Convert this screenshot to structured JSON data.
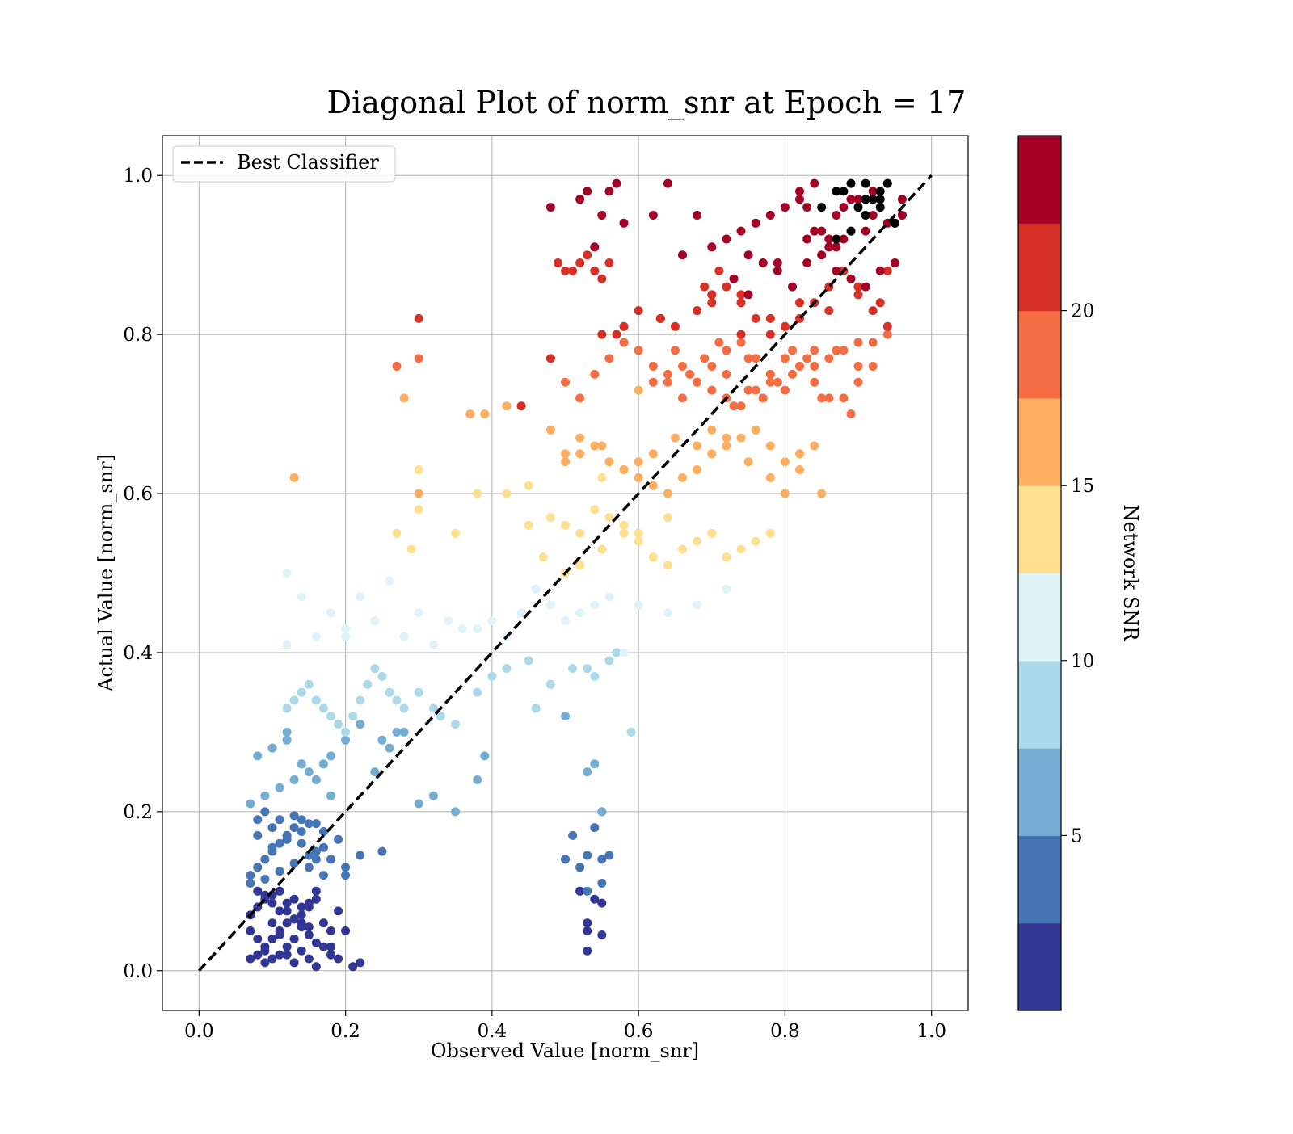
{
  "chart_data": {
    "type": "scatter",
    "title": "Diagonal Plot of norm_snr at Epoch = 17",
    "xlabel": "Observed Value [norm_snr]",
    "ylabel": "Actual Value [norm_snr]",
    "xlim": [
      -0.05,
      1.05
    ],
    "ylim": [
      -0.05,
      1.05
    ],
    "xticks": [
      0.0,
      0.2,
      0.4,
      0.6,
      0.8,
      1.0
    ],
    "yticks": [
      0.0,
      0.2,
      0.4,
      0.6,
      0.8,
      1.0
    ],
    "xtick_labels": [
      "0.0",
      "0.2",
      "0.4",
      "0.6",
      "0.8",
      "1.0"
    ],
    "ytick_labels": [
      "0.0",
      "0.2",
      "0.4",
      "0.6",
      "0.8",
      "1.0"
    ],
    "grid": true,
    "legend": {
      "position": "upper-left",
      "entries": [
        "Best Classifier"
      ]
    },
    "reference_line": {
      "name": "Best Classifier",
      "style": "dashed",
      "color": "#000000",
      "x": [
        0.0,
        1.0
      ],
      "y": [
        0.0,
        1.0
      ]
    },
    "colorbar": {
      "label": "Network SNR",
      "range": [
        0,
        25
      ],
      "ticks": [
        5,
        10,
        15,
        20
      ],
      "tick_labels": [
        "5",
        "10",
        "15",
        "20"
      ],
      "colors": [
        "#313695",
        "#4575b4",
        "#74add1",
        "#abd9e9",
        "#e0f3f8",
        "#fee090",
        "#fdae61",
        "#f46d43",
        "#d73027",
        "#a50026"
      ]
    },
    "point_colors": [
      "#313695",
      "#4575b4",
      "#74add1",
      "#abd9e9",
      "#e0f3f8",
      "#fee090",
      "#fdae61",
      "#f46d43",
      "#d73027",
      "#a50026"
    ],
    "points_x": [
      0.07,
      0.08,
      0.09,
      0.09,
      0.1,
      0.1,
      0.11,
      0.11,
      0.12,
      0.12,
      0.13,
      0.13,
      0.14,
      0.14,
      0.15,
      0.15,
      0.16,
      0.07,
      0.08,
      0.09,
      0.1,
      0.11,
      0.12,
      0.13,
      0.14,
      0.15,
      0.16,
      0.17,
      0.18,
      0.19,
      0.08,
      0.1,
      0.12,
      0.14,
      0.16,
      0.18,
      0.2,
      0.22,
      0.08,
      0.09,
      0.1,
      0.11,
      0.12,
      0.13,
      0.14,
      0.15,
      0.16,
      0.18,
      0.07,
      0.09,
      0.11,
      0.13,
      0.15,
      0.17,
      0.19,
      0.21,
      0.53,
      0.53,
      0.54,
      0.55,
      0.55,
      0.53,
      0.52,
      0.07,
      0.08,
      0.09,
      0.1,
      0.11,
      0.12,
      0.13,
      0.14,
      0.15,
      0.16,
      0.17,
      0.08,
      0.1,
      0.12,
      0.14,
      0.16,
      0.18,
      0.2,
      0.09,
      0.11,
      0.13,
      0.15,
      0.17,
      0.07,
      0.09,
      0.11,
      0.13,
      0.15,
      0.17,
      0.19,
      0.22,
      0.25,
      0.08,
      0.1,
      0.12,
      0.14,
      0.16,
      0.2,
      0.5,
      0.51,
      0.53,
      0.54,
      0.55,
      0.56,
      0.5,
      0.52,
      0.55,
      0.55,
      0.53,
      0.07,
      0.09,
      0.11,
      0.13,
      0.15,
      0.17,
      0.08,
      0.1,
      0.12,
      0.14,
      0.16,
      0.18,
      0.1,
      0.12,
      0.14,
      0.16,
      0.18,
      0.2,
      0.22,
      0.24,
      0.26,
      0.28,
      0.3,
      0.32,
      0.35,
      0.38,
      0.39,
      0.25,
      0.27,
      0.53,
      0.54,
      0.55,
      0.5,
      0.12,
      0.13,
      0.14,
      0.15,
      0.16,
      0.17,
      0.18,
      0.19,
      0.2,
      0.21,
      0.22,
      0.23,
      0.24,
      0.25,
      0.26,
      0.27,
      0.28,
      0.3,
      0.32,
      0.35,
      0.38,
      0.4,
      0.42,
      0.45,
      0.48,
      0.51,
      0.54,
      0.56,
      0.59,
      0.33,
      0.46,
      0.53,
      0.57,
      0.12,
      0.16,
      0.2,
      0.24,
      0.28,
      0.32,
      0.36,
      0.4,
      0.44,
      0.48,
      0.52,
      0.56,
      0.6,
      0.64,
      0.68,
      0.72,
      0.22,
      0.26,
      0.3,
      0.34,
      0.38,
      0.42,
      0.46,
      0.5,
      0.54,
      0.58,
      0.2,
      0.18,
      0.14,
      0.12,
      0.47,
      0.5,
      0.52,
      0.55,
      0.58,
      0.6,
      0.62,
      0.64,
      0.66,
      0.68,
      0.7,
      0.72,
      0.74,
      0.76,
      0.78,
      0.45,
      0.48,
      0.5,
      0.52,
      0.54,
      0.56,
      0.58,
      0.6,
      0.62,
      0.64,
      0.27,
      0.29,
      0.3,
      0.35,
      0.38,
      0.42,
      0.45,
      0.55,
      0.3,
      0.5,
      0.52,
      0.54,
      0.56,
      0.58,
      0.6,
      0.62,
      0.64,
      0.66,
      0.68,
      0.7,
      0.72,
      0.74,
      0.76,
      0.78,
      0.8,
      0.82,
      0.84,
      0.48,
      0.5,
      0.52,
      0.55,
      0.58,
      0.6,
      0.62,
      0.65,
      0.68,
      0.7,
      0.72,
      0.75,
      0.78,
      0.8,
      0.82,
      0.85,
      0.13,
      0.3,
      0.37,
      0.39,
      0.42,
      0.28,
      0.6,
      0.62,
      0.64,
      0.66,
      0.68,
      0.7,
      0.72,
      0.74,
      0.76,
      0.78,
      0.8,
      0.82,
      0.84,
      0.86,
      0.88,
      0.9,
      0.92,
      0.65,
      0.67,
      0.69,
      0.71,
      0.73,
      0.75,
      0.77,
      0.79,
      0.81,
      0.83,
      0.85,
      0.87,
      0.89,
      0.5,
      0.52,
      0.54,
      0.56,
      0.58,
      0.6,
      0.62,
      0.64,
      0.66,
      0.68,
      0.7,
      0.72,
      0.74,
      0.76,
      0.78,
      0.8,
      0.82,
      0.84,
      0.86,
      0.88,
      0.9,
      0.92,
      0.94,
      0.72,
      0.75,
      0.78,
      0.81,
      0.84,
      0.87,
      0.9,
      0.27,
      0.3,
      0.44,
      0.48,
      0.55,
      0.57,
      0.58,
      0.63,
      0.68,
      0.7,
      0.74,
      0.9,
      0.93,
      0.6,
      0.63,
      0.65,
      0.68,
      0.7,
      0.72,
      0.74,
      0.76,
      0.78,
      0.8,
      0.82,
      0.84,
      0.86,
      0.88,
      0.9,
      0.92,
      0.94,
      0.7,
      0.74,
      0.78,
      0.82,
      0.86,
      0.9,
      0.94,
      0.3,
      0.5,
      0.52,
      0.54,
      0.56,
      0.53,
      0.55,
      0.51,
      0.49,
      0.69,
      0.71,
      0.73,
      0.75,
      0.77,
      0.79,
      0.81,
      0.83,
      0.85,
      0.87,
      0.89,
      0.91,
      0.93,
      0.95,
      0.75,
      0.79,
      0.83,
      0.87,
      0.91,
      0.95,
      0.96,
      0.48,
      0.52,
      0.53,
      0.54,
      0.55,
      0.56,
      0.57,
      0.58,
      0.62,
      0.64,
      0.66,
      0.68,
      0.7,
      0.72,
      0.74,
      0.76,
      0.78,
      0.8,
      0.82,
      0.84,
      0.86,
      0.88,
      0.9,
      0.92,
      0.94,
      0.96,
      0.82,
      0.84,
      0.86,
      0.88,
      0.9,
      0.92,
      0.94,
      0.96,
      0.83,
      0.85,
      0.87,
      0.89,
      0.91,
      0.93,
      0.85,
      0.87,
      0.89,
      0.91,
      0.93,
      0.95,
      0.87,
      0.89,
      0.91,
      0.93,
      0.88,
      0.9,
      0.92,
      0.94
    ],
    "points_y": [
      0.015,
      0.02,
      0.03,
      0.01,
      0.04,
      0.015,
      0.05,
      0.02,
      0.03,
      0.06,
      0.01,
      0.04,
      0.025,
      0.055,
      0.015,
      0.045,
      0.005,
      0.07,
      0.08,
      0.09,
      0.095,
      0.075,
      0.085,
      0.065,
      0.07,
      0.08,
      0.09,
      0.06,
      0.05,
      0.075,
      0.04,
      0.06,
      0.02,
      0.08,
      0.1,
      0.03,
      0.05,
      0.01,
      0.1,
      0.095,
      0.085,
      0.1,
      0.075,
      0.09,
      0.06,
      0.055,
      0.035,
      0.02,
      0.05,
      0.025,
      0.045,
      0.065,
      0.085,
      0.03,
      0.015,
      0.005,
      0.06,
      0.05,
      0.09,
      0.085,
      0.045,
      0.025,
      0.1,
      0.12,
      0.13,
      0.14,
      0.15,
      0.16,
      0.17,
      0.18,
      0.19,
      0.13,
      0.14,
      0.12,
      0.19,
      0.18,
      0.17,
      0.16,
      0.15,
      0.14,
      0.13,
      0.2,
      0.19,
      0.195,
      0.185,
      0.175,
      0.11,
      0.115,
      0.125,
      0.135,
      0.145,
      0.155,
      0.165,
      0.145,
      0.15,
      0.17,
      0.155,
      0.165,
      0.175,
      0.185,
      0.12,
      0.14,
      0.17,
      0.145,
      0.18,
      0.2,
      0.145,
      0.14,
      0.13,
      0.11,
      0.14,
      0.1,
      0.21,
      0.22,
      0.23,
      0.24,
      0.25,
      0.26,
      0.27,
      0.28,
      0.29,
      0.26,
      0.24,
      0.22,
      0.28,
      0.3,
      0.26,
      0.24,
      0.27,
      0.29,
      0.31,
      0.25,
      0.28,
      0.3,
      0.21,
      0.22,
      0.2,
      0.24,
      0.27,
      0.29,
      0.3,
      0.25,
      0.26,
      0.2,
      0.32,
      0.33,
      0.34,
      0.35,
      0.36,
      0.34,
      0.33,
      0.32,
      0.31,
      0.3,
      0.32,
      0.34,
      0.36,
      0.38,
      0.37,
      0.35,
      0.34,
      0.33,
      0.35,
      0.33,
      0.31,
      0.35,
      0.37,
      0.38,
      0.39,
      0.36,
      0.38,
      0.37,
      0.39,
      0.3,
      0.32,
      0.33,
      0.38,
      0.4,
      0.41,
      0.42,
      0.43,
      0.44,
      0.42,
      0.41,
      0.43,
      0.44,
      0.45,
      0.46,
      0.45,
      0.47,
      0.46,
      0.45,
      0.46,
      0.48,
      0.47,
      0.49,
      0.45,
      0.44,
      0.43,
      0.42,
      0.48,
      0.44,
      0.46,
      0.4,
      0.42,
      0.45,
      0.47,
      0.5,
      0.52,
      0.5,
      0.51,
      0.53,
      0.55,
      0.54,
      0.52,
      0.51,
      0.53,
      0.54,
      0.55,
      0.52,
      0.53,
      0.54,
      0.55,
      0.56,
      0.57,
      0.56,
      0.55,
      0.58,
      0.57,
      0.56,
      0.55,
      0.52,
      0.57,
      0.55,
      0.53,
      0.58,
      0.55,
      0.6,
      0.6,
      0.61,
      0.62,
      0.63,
      0.64,
      0.65,
      0.66,
      0.64,
      0.63,
      0.62,
      0.61,
      0.6,
      0.62,
      0.63,
      0.65,
      0.66,
      0.67,
      0.68,
      0.62,
      0.64,
      0.63,
      0.66,
      0.68,
      0.65,
      0.67,
      0.66,
      0.63,
      0.64,
      0.65,
      0.67,
      0.66,
      0.68,
      0.67,
      0.64,
      0.66,
      0.6,
      0.65,
      0.6,
      0.62,
      0.6,
      0.7,
      0.7,
      0.71,
      0.72,
      0.73,
      0.74,
      0.75,
      0.76,
      0.74,
      0.73,
      0.72,
      0.71,
      0.73,
      0.75,
      0.77,
      0.76,
      0.74,
      0.72,
      0.72,
      0.74,
      0.76,
      0.78,
      0.75,
      0.77,
      0.79,
      0.71,
      0.73,
      0.72,
      0.74,
      0.75,
      0.77,
      0.72,
      0.78,
      0.7,
      0.74,
      0.72,
      0.75,
      0.77,
      0.79,
      0.78,
      0.76,
      0.74,
      0.72,
      0.74,
      0.76,
      0.78,
      0.79,
      0.77,
      0.75,
      0.73,
      0.76,
      0.78,
      0.77,
      0.78,
      0.76,
      0.79,
      0.8,
      0.75,
      0.77,
      0.74,
      0.78,
      0.76,
      0.78,
      0.79,
      0.76,
      0.77,
      0.71,
      0.77,
      0.8,
      0.8,
      0.81,
      0.82,
      0.83,
      0.84,
      0.85,
      0.86,
      0.84,
      0.83,
      0.82,
      0.81,
      0.83,
      0.85,
      0.86,
      0.84,
      0.82,
      0.8,
      0.81,
      0.82,
      0.84,
      0.86,
      0.88,
      0.85,
      0.83,
      0.81,
      0.85,
      0.8,
      0.82,
      0.84,
      0.83,
      0.86,
      0.88,
      0.82,
      0.88,
      0.89,
      0.88,
      0.89,
      0.9,
      0.87,
      0.88,
      0.89,
      0.86,
      0.88,
      0.87,
      0.9,
      0.89,
      0.88,
      0.86,
      0.89,
      0.9,
      0.88,
      0.87,
      0.86,
      0.88,
      0.89,
      0.85,
      0.89,
      0.92,
      0.91,
      0.93,
      0.94,
      0.95,
      0.96,
      0.97,
      0.98,
      0.91,
      0.95,
      0.98,
      0.99,
      0.94,
      0.95,
      0.99,
      0.9,
      0.95,
      0.91,
      0.92,
      0.93,
      0.94,
      0.95,
      0.96,
      0.97,
      0.93,
      0.91,
      0.92,
      0.96,
      0.95,
      0.94,
      0.97,
      0.98,
      0.99,
      0.92,
      0.96,
      0.97,
      0.98,
      0.99,
      0.95,
      0.96,
      0.93,
      0.95,
      0.97,
      0.99,
      0.98,
      0.96,
      0.98,
      0.99,
      0.97,
      0.96,
      0.94,
      0.92,
      0.93,
      0.95,
      0.97,
      0.98,
      0.96,
      0.97,
      0.99,
      0.98
    ],
    "points_class": [
      0,
      0,
      0,
      0,
      0,
      0,
      0,
      0,
      0,
      0,
      0,
      0,
      0,
      0,
      0,
      0,
      0,
      0,
      0,
      0,
      0,
      0,
      0,
      0,
      0,
      0,
      0,
      0,
      0,
      0,
      0,
      0,
      0,
      0,
      0,
      0,
      0,
      0,
      0,
      0,
      0,
      0,
      0,
      0,
      0,
      0,
      0,
      0,
      0,
      0,
      0,
      0,
      0,
      0,
      0,
      0,
      0,
      0,
      0,
      0,
      0,
      0,
      0,
      1,
      1,
      1,
      1,
      1,
      1,
      1,
      1,
      1,
      1,
      1,
      1,
      1,
      1,
      1,
      1,
      1,
      1,
      1,
      1,
      1,
      1,
      1,
      1,
      1,
      1,
      1,
      1,
      1,
      1,
      1,
      1,
      1,
      1,
      1,
      1,
      1,
      1,
      1,
      1,
      1,
      1,
      1,
      1,
      1,
      1,
      1,
      1,
      1,
      2,
      2,
      2,
      2,
      2,
      2,
      2,
      2,
      2,
      2,
      2,
      2,
      2,
      2,
      2,
      2,
      2,
      2,
      2,
      2,
      2,
      2,
      2,
      2,
      2,
      2,
      2,
      2,
      2,
      2,
      2,
      2,
      2,
      3,
      3,
      3,
      3,
      3,
      3,
      3,
      3,
      3,
      3,
      3,
      3,
      3,
      3,
      3,
      3,
      3,
      3,
      3,
      3,
      3,
      3,
      3,
      3,
      3,
      3,
      3,
      3,
      3,
      3,
      3,
      3,
      3,
      4,
      4,
      4,
      4,
      4,
      4,
      4,
      4,
      4,
      4,
      4,
      4,
      4,
      4,
      4,
      4,
      4,
      4,
      4,
      4,
      4,
      4,
      4,
      4,
      4,
      4,
      4,
      4,
      4,
      4,
      5,
      5,
      5,
      5,
      5,
      5,
      5,
      5,
      5,
      5,
      5,
      5,
      5,
      5,
      5,
      5,
      5,
      5,
      5,
      5,
      5,
      5,
      5,
      5,
      5,
      5,
      5,
      5,
      5,
      5,
      5,
      5,
      5,
      5,
      6,
      6,
      6,
      6,
      6,
      6,
      6,
      6,
      6,
      6,
      6,
      6,
      6,
      6,
      6,
      6,
      6,
      6,
      6,
      6,
      6,
      6,
      6,
      6,
      6,
      6,
      6,
      6,
      6,
      6,
      6,
      6,
      6,
      6,
      6,
      6,
      6,
      6,
      6,
      6,
      6,
      7,
      7,
      7,
      7,
      7,
      7,
      7,
      7,
      7,
      7,
      7,
      7,
      7,
      7,
      7,
      7,
      7,
      7,
      7,
      7,
      7,
      7,
      7,
      7,
      7,
      7,
      7,
      7,
      7,
      7,
      7,
      7,
      7,
      7,
      7,
      7,
      7,
      7,
      7,
      7,
      7,
      7,
      7,
      7,
      7,
      7,
      7,
      7,
      7,
      7,
      7,
      7,
      7,
      7,
      7,
      7,
      7,
      7,
      7,
      7,
      7,
      8,
      8,
      8,
      8,
      8,
      8,
      8,
      8,
      8,
      8,
      8,
      8,
      8,
      8,
      8,
      8,
      8,
      8,
      8,
      8,
      8,
      8,
      8,
      8,
      8,
      8,
      8,
      8,
      8,
      8,
      8,
      8,
      8,
      8,
      8,
      8,
      8,
      8,
      8,
      8,
      8,
      8,
      8,
      8,
      8,
      8,
      9,
      9,
      9,
      9,
      9,
      9,
      9,
      9,
      9,
      9,
      9,
      9,
      9,
      9,
      9,
      9,
      9,
      9,
      9,
      9,
      9,
      9,
      9,
      9,
      9,
      9,
      9,
      9,
      9,
      9,
      9,
      9,
      9,
      9,
      9,
      9,
      9,
      9,
      9,
      9,
      9,
      9,
      9,
      9,
      9,
      9,
      9,
      9,
      9,
      9,
      9,
      9,
      9,
      9,
      9,
      9,
      9
    ]
  }
}
